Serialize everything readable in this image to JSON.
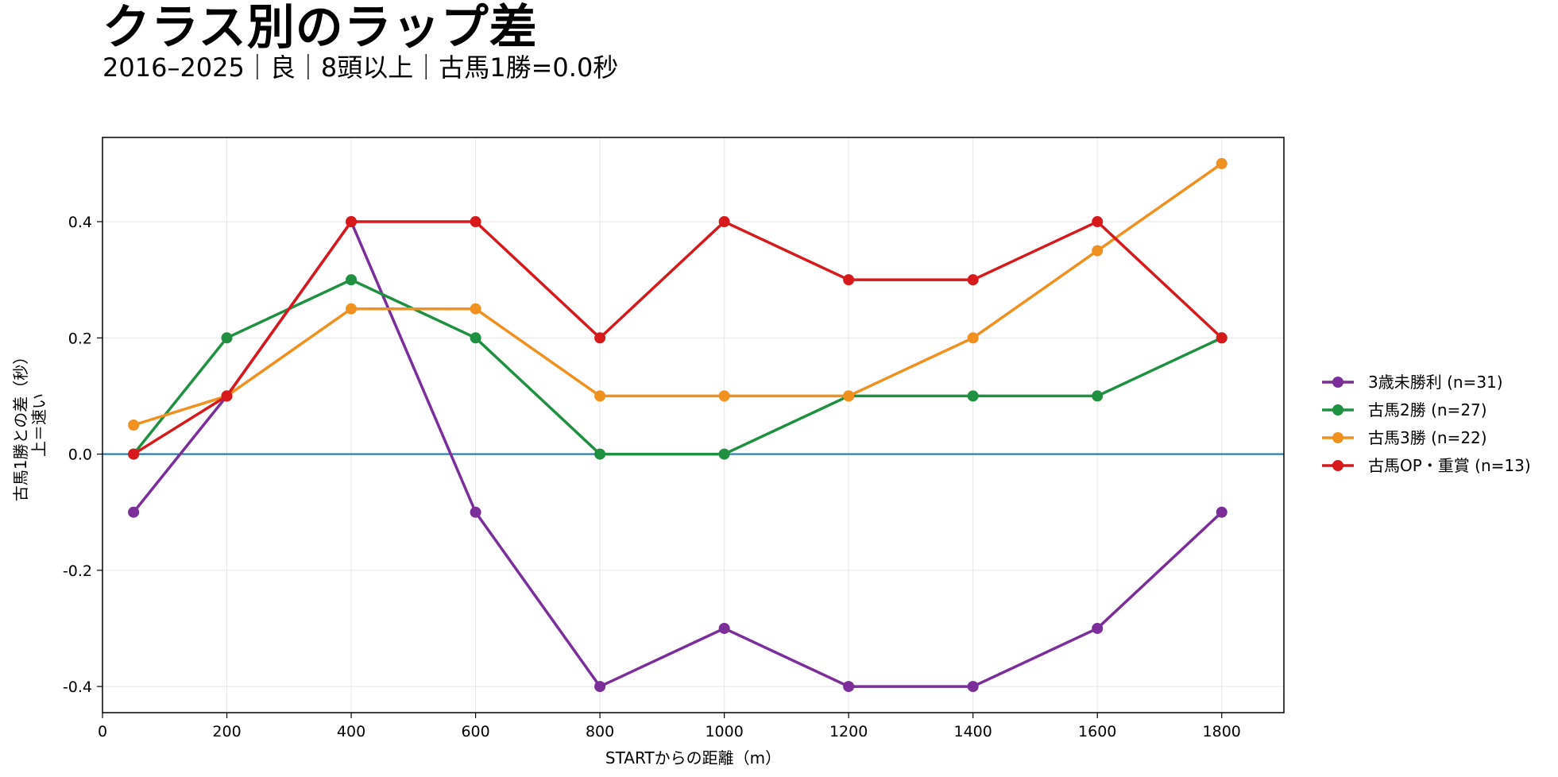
{
  "chart_data": {
    "type": "line",
    "title": "クラス別のラップ差",
    "subtitle": "2016–2025｜良｜8頭以上｜古馬1勝=0.0秒",
    "xlabel": "STARTからの距離（m）",
    "ylabel": "古馬1勝との差（秒）",
    "ylabel2": "上＝速い",
    "x": [
      50,
      200,
      400,
      600,
      800,
      1000,
      1200,
      1400,
      1600,
      1800
    ],
    "xlim": [
      0,
      1900
    ],
    "ylim": [
      -0.445,
      0.545
    ],
    "xticks": [
      "0",
      "200",
      "400",
      "600",
      "800",
      "1000",
      "1200",
      "1400",
      "1600",
      "1800"
    ],
    "yticks": [
      "-0.4",
      "-0.2",
      "0.0",
      "0.2",
      "0.4"
    ],
    "grid": true,
    "reference_line": {
      "y": 0.0,
      "color": "#1f77b4"
    },
    "legend_position": "right",
    "series": [
      {
        "name": "3歳未勝利 (n=31)",
        "color": "#7b2d9a",
        "values": [
          -0.1,
          0.1,
          0.4,
          -0.1,
          -0.4,
          -0.3,
          -0.4,
          -0.4,
          -0.3,
          -0.1
        ]
      },
      {
        "name": "古馬2勝 (n=27)",
        "color": "#1e9040",
        "values": [
          0.0,
          0.2,
          0.3,
          0.2,
          0.0,
          0.0,
          0.1,
          0.1,
          0.1,
          0.2
        ]
      },
      {
        "name": "古馬3勝 (n=22)",
        "color": "#f0901e",
        "values": [
          0.05,
          0.1,
          0.25,
          0.25,
          0.1,
          0.1,
          0.1,
          0.2,
          0.35,
          0.5
        ]
      },
      {
        "name": "古馬OP・重賞 (n=13)",
        "color": "#d7191c",
        "values": [
          0.0,
          0.1,
          0.4,
          0.4,
          0.2,
          0.4,
          0.3,
          0.3,
          0.4,
          0.2
        ]
      }
    ]
  }
}
